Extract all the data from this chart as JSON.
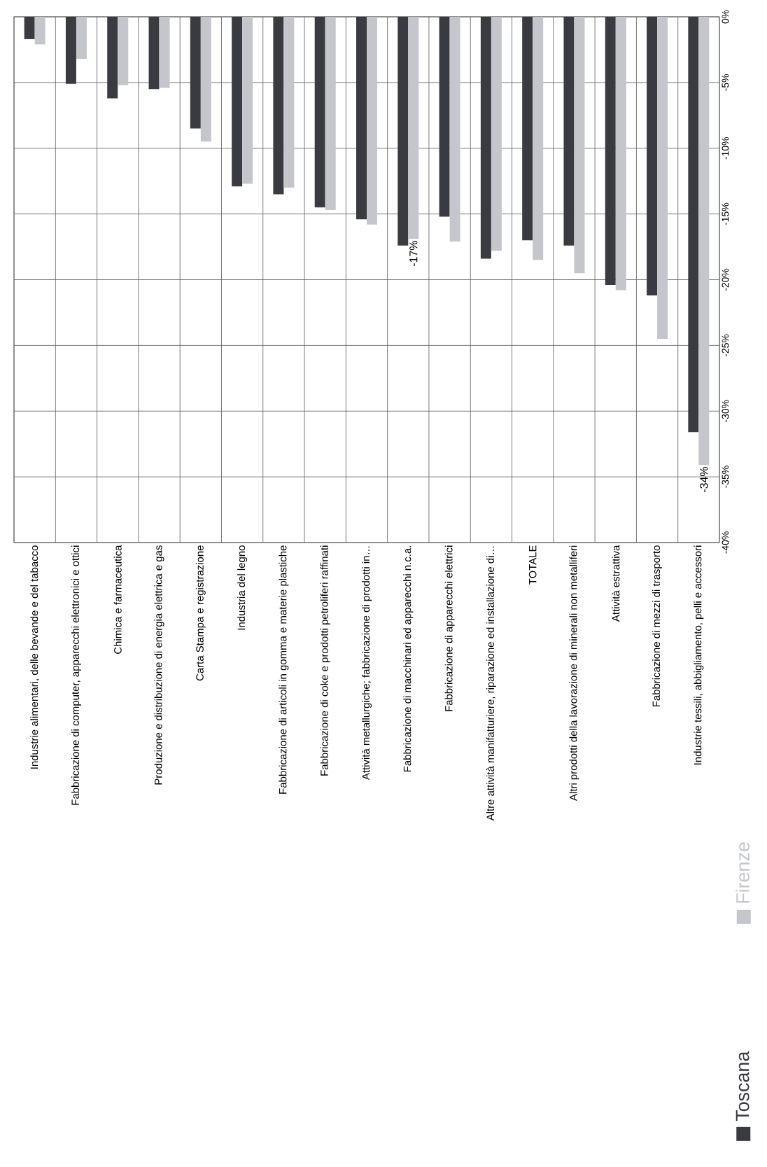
{
  "chart_data": {
    "type": "bar",
    "categories": [
      "Industrie alimentari, delle bevande e del tabacco",
      "Fabbricazione di computer, apparecchi elettronici e ottici",
      "Chimica e farmaceutica",
      "Produzione e distribuzione di energia elettrica e gas",
      "Carta Stampa e registrazione",
      "Industria del legno",
      "Fabbricazione di articoli in gomma e materie plastiche",
      "Fabbricazione di coke e prodotti petroliferi raffinati",
      "Attività metallurgiche; fabbricazione di prodotti in…",
      "Fabbricazione di macchinari ed apparecchi n.c.a.",
      "Fabbricazione di apparecchi elettrici",
      "Altre attività manifatturiere, riparazione ed installazione di…",
      "TOTALE",
      "Altri prodotti della lavorazione di minerali non metalliferi",
      "Attività estrattiva",
      "Fabbricazione di mezzi di trasporto",
      "Industrie tessili, abbigliamento, pelli e accessori"
    ],
    "series": [
      {
        "name": "Toscana",
        "color": "#3a3b40",
        "values": [
          -1.7,
          -5.1,
          -6.2,
          -5.5,
          -8.5,
          -12.9,
          -13.5,
          -14.5,
          -15.4,
          -17.4,
          -15.2,
          -18.4,
          -17.0,
          -17.4,
          -20.4,
          -21.2,
          -31.6
        ]
      },
      {
        "name": "Firenze",
        "color": "#c4c6cc",
        "values": [
          -2.1,
          -3.2,
          -5.2,
          -5.4,
          -9.5,
          -12.7,
          -13.0,
          -14.7,
          -15.8,
          -16.9,
          -17.1,
          -17.8,
          -18.5,
          -19.5,
          -20.8,
          -24.5,
          -34.1
        ],
        "value_labels": [
          null,
          null,
          null,
          null,
          null,
          null,
          null,
          null,
          null,
          "-17%",
          null,
          null,
          null,
          null,
          null,
          null,
          "-34%"
        ]
      }
    ],
    "ylim": [
      -40,
      0
    ],
    "yticks": [
      {
        "value": 0,
        "label": "0%"
      },
      {
        "value": -5,
        "label": "-5%"
      },
      {
        "value": -10,
        "label": "-10%"
      },
      {
        "value": -15,
        "label": "-15%"
      },
      {
        "value": -20,
        "label": "-20%"
      },
      {
        "value": -25,
        "label": "-25%"
      },
      {
        "value": -30,
        "label": "-30%"
      },
      {
        "value": -35,
        "label": "-35%"
      },
      {
        "value": -40,
        "label": "-40%"
      }
    ],
    "grid": true,
    "legend": "bottom right"
  }
}
